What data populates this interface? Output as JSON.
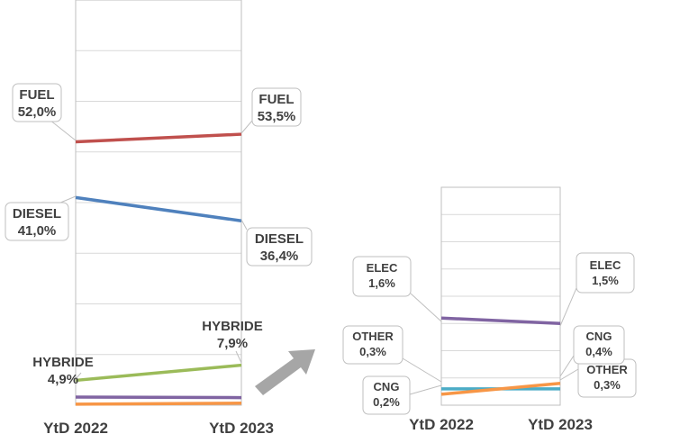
{
  "chart_data": [
    {
      "type": "line",
      "categories": [
        "YtD 2022",
        "YtD 2023"
      ],
      "ylim": [
        0,
        80
      ],
      "grid": true,
      "series": [
        {
          "name": "FUEL",
          "values": [
            52.0,
            53.5
          ],
          "labels": [
            "52,0%",
            "53,5%"
          ],
          "color": "#c0504d"
        },
        {
          "name": "DIESEL",
          "values": [
            41.0,
            36.4
          ],
          "labels": [
            "41,0%",
            "36,4%"
          ],
          "color": "#4f81bd"
        },
        {
          "name": "HYBRIDE",
          "values": [
            4.9,
            7.9
          ],
          "labels": [
            "4,9%",
            "7,9%"
          ],
          "color": "#9bbb59"
        },
        {
          "name": "",
          "values": [
            1.6,
            1.5
          ],
          "labels": [],
          "color": "#8064a2"
        },
        {
          "name": "",
          "values": [
            0.2,
            0.4
          ],
          "labels": [],
          "color": "#f79646"
        }
      ]
    },
    {
      "type": "line",
      "categories": [
        "YtD 2022",
        "YtD 2023"
      ],
      "ylim": [
        0,
        4
      ],
      "grid": true,
      "series": [
        {
          "name": "ELEC",
          "values": [
            1.6,
            1.5
          ],
          "labels": [
            "1,6%",
            "1,5%"
          ],
          "color": "#8064a2"
        },
        {
          "name": "OTHER",
          "values": [
            0.3,
            0.3
          ],
          "labels": [
            "0,3%",
            "0,3%"
          ],
          "color": "#4bacc6"
        },
        {
          "name": "CNG",
          "values": [
            0.2,
            0.4
          ],
          "labels": [
            "0,2%",
            "0,4%"
          ],
          "color": "#f79646"
        }
      ]
    }
  ],
  "colors": {
    "label_text": "#404040",
    "grid": "#d9d9d9",
    "arrow": "#a6a6a6"
  }
}
